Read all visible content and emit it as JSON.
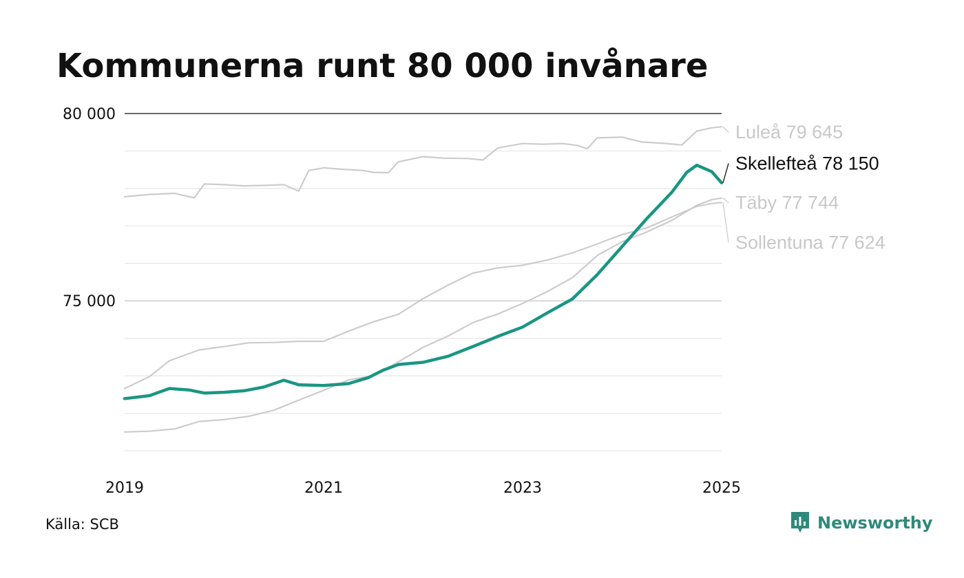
{
  "title": "Kommunerna runt 80 000 invånare",
  "source": "Källa: SCB",
  "brand": {
    "name": "Newsworthy",
    "icon": "newsworthy-logo-icon",
    "color": "#2e8a7a"
  },
  "chart_data": {
    "type": "line",
    "title": "Kommunerna runt 80 000 invånare",
    "xlabel": "",
    "ylabel": "",
    "xlim": [
      2019,
      2025
    ],
    "ylim": [
      71000,
      80000
    ],
    "x_ticks": [
      {
        "value": 2019,
        "label": "2019"
      },
      {
        "value": 2021,
        "label": "2021"
      },
      {
        "value": 2023,
        "label": "2023"
      },
      {
        "value": 2025,
        "label": "2025"
      }
    ],
    "y_ticks": [
      {
        "value": 75000,
        "label": "75 000"
      },
      {
        "value": 80000,
        "label": "80 000"
      }
    ],
    "y_gridlines": [
      71000,
      72000,
      73000,
      74000,
      75000,
      76000,
      77000,
      78000,
      79000,
      80000
    ],
    "grid": true,
    "series": [
      {
        "name": "Luleå",
        "end_label": "Luleå 79 645",
        "color": "#cccccc",
        "highlight": false,
        "points": [
          [
            2019.0,
            77780
          ],
          [
            2019.25,
            77840
          ],
          [
            2019.5,
            77870
          ],
          [
            2019.7,
            77750
          ],
          [
            2019.8,
            78120
          ],
          [
            2020.0,
            78100
          ],
          [
            2020.2,
            78070
          ],
          [
            2020.4,
            78080
          ],
          [
            2020.6,
            78100
          ],
          [
            2020.75,
            77930
          ],
          [
            2020.85,
            78480
          ],
          [
            2021.0,
            78550
          ],
          [
            2021.2,
            78510
          ],
          [
            2021.4,
            78480
          ],
          [
            2021.5,
            78430
          ],
          [
            2021.65,
            78420
          ],
          [
            2021.75,
            78710
          ],
          [
            2022.0,
            78850
          ],
          [
            2022.2,
            78810
          ],
          [
            2022.45,
            78800
          ],
          [
            2022.6,
            78760
          ],
          [
            2022.75,
            79080
          ],
          [
            2023.0,
            79200
          ],
          [
            2023.2,
            79180
          ],
          [
            2023.4,
            79200
          ],
          [
            2023.55,
            79150
          ],
          [
            2023.65,
            79060
          ],
          [
            2023.75,
            79350
          ],
          [
            2024.0,
            79370
          ],
          [
            2024.2,
            79240
          ],
          [
            2024.45,
            79200
          ],
          [
            2024.6,
            79160
          ],
          [
            2024.75,
            79530
          ],
          [
            2024.9,
            79620
          ],
          [
            2025.0,
            79645
          ]
        ]
      },
      {
        "name": "Skellefteå",
        "end_label": "Skellefteå 78 150",
        "color": "#1a9683",
        "highlight": true,
        "points": [
          [
            2019.0,
            72390
          ],
          [
            2019.25,
            72470
          ],
          [
            2019.45,
            72660
          ],
          [
            2019.65,
            72620
          ],
          [
            2019.8,
            72540
          ],
          [
            2020.0,
            72560
          ],
          [
            2020.2,
            72600
          ],
          [
            2020.4,
            72700
          ],
          [
            2020.6,
            72880
          ],
          [
            2020.75,
            72760
          ],
          [
            2021.0,
            72740
          ],
          [
            2021.25,
            72790
          ],
          [
            2021.45,
            72950
          ],
          [
            2021.6,
            73150
          ],
          [
            2021.75,
            73300
          ],
          [
            2022.0,
            73360
          ],
          [
            2022.25,
            73520
          ],
          [
            2022.5,
            73780
          ],
          [
            2022.75,
            74050
          ],
          [
            2023.0,
            74300
          ],
          [
            2023.25,
            74680
          ],
          [
            2023.5,
            75050
          ],
          [
            2023.75,
            75700
          ],
          [
            2024.0,
            76450
          ],
          [
            2024.25,
            77200
          ],
          [
            2024.5,
            77900
          ],
          [
            2024.65,
            78430
          ],
          [
            2024.75,
            78620
          ],
          [
            2024.9,
            78450
          ],
          [
            2025.0,
            78150
          ]
        ]
      },
      {
        "name": "Täby",
        "end_label": "Täby 77 744",
        "color": "#cccccc",
        "highlight": false,
        "points": [
          [
            2019.0,
            71500
          ],
          [
            2019.25,
            71520
          ],
          [
            2019.5,
            71580
          ],
          [
            2019.75,
            71780
          ],
          [
            2020.0,
            71830
          ],
          [
            2020.25,
            71920
          ],
          [
            2020.5,
            72080
          ],
          [
            2020.75,
            72350
          ],
          [
            2021.0,
            72610
          ],
          [
            2021.25,
            72890
          ],
          [
            2021.5,
            73000
          ],
          [
            2021.75,
            73370
          ],
          [
            2022.0,
            73760
          ],
          [
            2022.25,
            74060
          ],
          [
            2022.5,
            74420
          ],
          [
            2022.75,
            74650
          ],
          [
            2023.0,
            74930
          ],
          [
            2023.25,
            75250
          ],
          [
            2023.5,
            75620
          ],
          [
            2023.75,
            76210
          ],
          [
            2024.0,
            76580
          ],
          [
            2024.25,
            76840
          ],
          [
            2024.5,
            77150
          ],
          [
            2024.75,
            77550
          ],
          [
            2024.9,
            77700
          ],
          [
            2025.0,
            77744
          ]
        ]
      },
      {
        "name": "Sollentuna",
        "end_label": "Sollentuna 77 624",
        "color": "#cccccc",
        "highlight": false,
        "points": [
          [
            2019.0,
            72660
          ],
          [
            2019.25,
            72980
          ],
          [
            2019.45,
            73400
          ],
          [
            2019.75,
            73690
          ],
          [
            2020.0,
            73780
          ],
          [
            2020.25,
            73880
          ],
          [
            2020.5,
            73890
          ],
          [
            2020.75,
            73920
          ],
          [
            2021.0,
            73920
          ],
          [
            2021.25,
            74190
          ],
          [
            2021.5,
            74440
          ],
          [
            2021.75,
            74640
          ],
          [
            2022.0,
            75060
          ],
          [
            2022.25,
            75420
          ],
          [
            2022.5,
            75740
          ],
          [
            2022.75,
            75880
          ],
          [
            2023.0,
            75950
          ],
          [
            2023.25,
            76090
          ],
          [
            2023.5,
            76280
          ],
          [
            2023.75,
            76520
          ],
          [
            2024.0,
            76770
          ],
          [
            2024.25,
            76950
          ],
          [
            2024.5,
            77240
          ],
          [
            2024.75,
            77520
          ],
          [
            2024.9,
            77600
          ],
          [
            2025.0,
            77624
          ]
        ]
      }
    ],
    "end_label_values": {
      "Luleå": 79500,
      "Skellefteå": 78670,
      "Täby": 77620,
      "Sollentuna": 76560
    }
  }
}
